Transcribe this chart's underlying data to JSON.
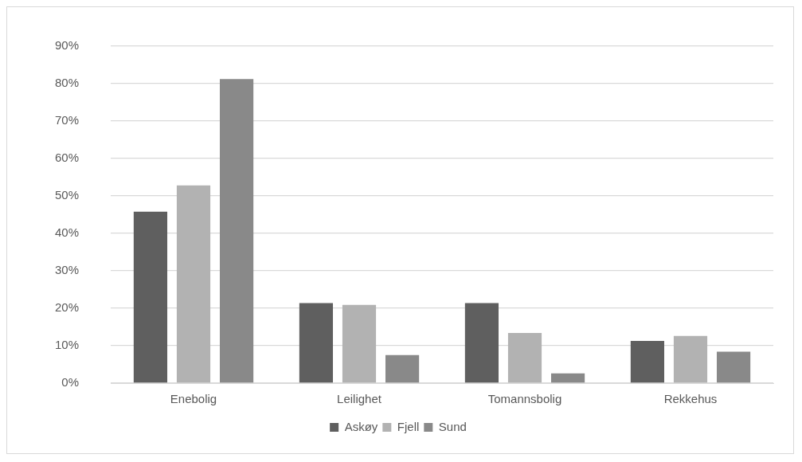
{
  "chart_data": {
    "type": "bar",
    "categories": [
      "Enebolig",
      "Leilighet",
      "Tomannsbolig",
      "Rekkehus"
    ],
    "series": [
      {
        "name": "Askøy",
        "color": "#5f5f5f",
        "values": [
          45.8,
          21.4,
          21.4,
          11.3
        ]
      },
      {
        "name": "Fjell",
        "color": "#b2b2b2",
        "values": [
          52.8,
          20.9,
          13.4,
          12.6
        ]
      },
      {
        "name": "Sund",
        "color": "#898989",
        "values": [
          81.2,
          7.5,
          2.6,
          8.4
        ]
      }
    ],
    "ylim": [
      0,
      90
    ],
    "yticks": [
      {
        "value": 0,
        "label": "0%"
      },
      {
        "value": 10,
        "label": "10%"
      },
      {
        "value": 20,
        "label": "20%"
      },
      {
        "value": 30,
        "label": "30%"
      },
      {
        "value": 40,
        "label": "40%"
      },
      {
        "value": 50,
        "label": "50%"
      },
      {
        "value": 60,
        "label": "60%"
      },
      {
        "value": 70,
        "label": "70%"
      },
      {
        "value": 80,
        "label": "80%"
      },
      {
        "value": 90,
        "label": "90%"
      }
    ],
    "grid": "y",
    "legend": "bottom"
  }
}
